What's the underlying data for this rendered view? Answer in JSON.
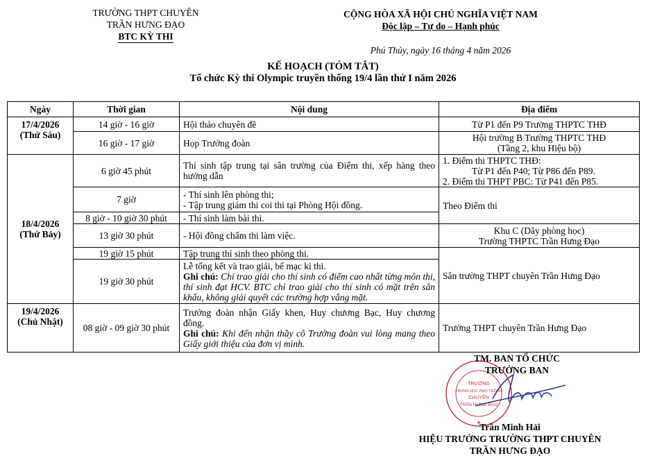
{
  "header_left": {
    "line1": "TRƯỜNG THPT CHUYÊN",
    "line2": "TRẦN HƯNG ĐẠO",
    "line3": "BTC KỲ THI"
  },
  "header_right": {
    "line1": "CỘNG HÒA XÃ HỘI CHỦ NGHĨA VIỆT NAM",
    "line2": "Độc lập – Tự do – Hạnh phúc",
    "date": "Phú Thủy, ngày 16 tháng 4 năm 2026"
  },
  "title": {
    "line1": "KẾ HOẠCH (TÓM TẮT)",
    "line2": "Tổ chức Kỳ thi Olympic truyền thống 19/4 lần thứ I năm 2026"
  },
  "table": {
    "headers": [
      "Ngày",
      "Thời gian",
      "Nội dung",
      "Địa điểm"
    ],
    "days": [
      {
        "date": "17/4/2026",
        "weekday": "(Thứ Sáu)"
      },
      {
        "date": "18/4/2026",
        "weekday": "(Thứ Bảy)"
      },
      {
        "date": "19/4/2026",
        "weekday": "(Chủ Nhật)"
      }
    ],
    "rows": [
      {
        "time": "14 giờ - 16 giờ",
        "content": "Hội thảo chuyên đề",
        "place": "Từ P1 đến P9 Trường THPTC THĐ"
      },
      {
        "time": "16 giờ - 17 giờ",
        "content": "Họp Trưởng đoàn",
        "place": "Hội trường B Trường THPTC THĐ",
        "place2": "(Tầng 2, khu Hiệu bộ)"
      },
      {
        "time": "6 giờ 45 phút",
        "content": "Thí sinh tập trung tại sân trường của Điểm thi, xếp hàng theo hướng dẫn",
        "place": "1. Điểm thi THPTC THĐ:",
        "place2": "Từ P1 đến P40; Từ P86 đến P89.",
        "place3": "2. Điểm thi THPT PBC: Từ P41 đến P85."
      },
      {
        "time": "7 giờ",
        "content": "- Thí sinh lên phòng thi;",
        "content2": "- Tập trung giám thi coi thi tại Phòng Hội đồng.",
        "place": "Theo Điểm thi"
      },
      {
        "time": "8 giờ - 10 giờ 30 phút",
        "content": "- Thí sinh làm bài thi."
      },
      {
        "time": "13 giờ 30 phút",
        "content": "- Hội đồng chấm thi làm việc.",
        "place": "Khu C (Dãy phòng học)",
        "place2": "Trường THPTC Trần Hưng Đạo"
      },
      {
        "time": "19 giờ 15 phút",
        "content": "Tập trung thí sinh theo phòng thi.",
        "place": "Sân trường THPT chuyên Trần Hưng Đạo"
      },
      {
        "time": "19 giờ 30 phút",
        "content": "Lễ tổng kết và trao giải, bế mạc kì thi.",
        "note_label": "Ghi chú:",
        "note": "Chỉ trao giải cho thí sinh có điểm cao nhất từng môn thi, thí sinh đạt HCV. BTC chỉ trao giải cho thí sinh có mặt trên sân khấu, không giải quyết các trường hợp vắng mặt."
      },
      {
        "time": "08 giờ - 09 giờ 30 phút",
        "content": "Trưởng đoàn nhận Giấy khen, Huy chương Bạc, Huy chương đồng.",
        "note_label": "Ghi chú:",
        "note": "Khi đến nhận thầy cô Trưởng đoàn vui lòng mang theo Giấy giới thiệu của đơn vị mình.",
        "place": "Trường THPT chuyên Trần Hưng Đạo"
      }
    ]
  },
  "signature": {
    "line1": "TM. BAN TỔ CHỨC",
    "line2": "TRƯỞNG BAN",
    "name": "Trần Minh Hải",
    "title1": "HIỆU TRƯỞNG TRƯỜNG THPT CHUYÊN",
    "title2": "TRẦN HƯNG ĐẠO",
    "seal_text": "SỞ GIÁO DỤC VÀ ĐÀO TẠO TỈNH PHÚ THỌ · TRƯỜNG TRUNG HỌC PHỔ THÔNG CHUYÊN TRẦN HƯNG ĐẠO",
    "seal_color": "#c8323c",
    "ink_color": "#2a3a8c"
  }
}
